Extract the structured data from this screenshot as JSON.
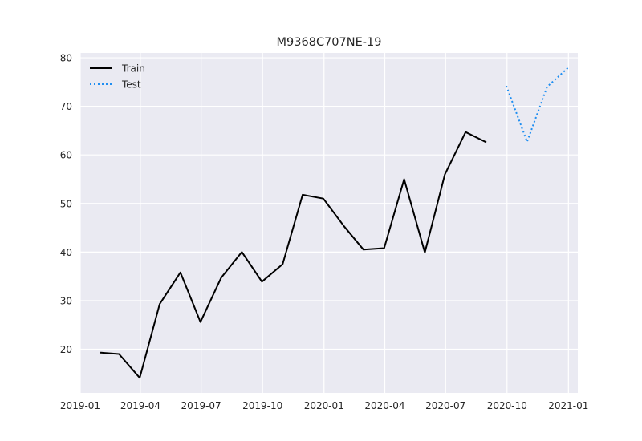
{
  "chart_data": {
    "type": "line",
    "title": "M9368C707NE-19",
    "xlabel": "",
    "ylabel": "",
    "grid": true,
    "legend_position": "top-left",
    "xlim": [
      "2019-01-01",
      "2021-01-15"
    ],
    "ylim": [
      11,
      81
    ],
    "x_ticks": [
      "2019-01",
      "2019-04",
      "2019-07",
      "2019-10",
      "2020-01",
      "2020-04",
      "2020-07",
      "2020-10",
      "2021-01"
    ],
    "y_ticks": [
      20,
      30,
      40,
      50,
      60,
      70,
      80
    ],
    "series": [
      {
        "name": "Train",
        "color": "#000000",
        "style": "solid",
        "x": [
          "2019-01-31",
          "2019-02-28",
          "2019-03-31",
          "2019-04-30",
          "2019-05-31",
          "2019-06-30",
          "2019-07-31",
          "2019-08-31",
          "2019-09-30",
          "2019-10-31",
          "2019-11-30",
          "2019-12-31",
          "2020-01-31",
          "2020-02-29",
          "2020-03-31",
          "2020-04-30",
          "2020-05-31",
          "2020-06-30",
          "2020-07-31",
          "2020-08-31"
        ],
        "values": [
          19.3,
          19.0,
          14.1,
          29.3,
          35.8,
          25.6,
          34.7,
          40.0,
          33.9,
          37.5,
          51.8,
          51.0,
          45.3,
          40.5,
          40.8,
          55.0,
          39.9,
          56.0,
          64.7,
          62.6
        ]
      },
      {
        "name": "Test",
        "color": "#1f8ef1",
        "style": "dotted",
        "x": [
          "2020-09-30",
          "2020-10-31",
          "2020-11-30",
          "2020-12-31"
        ],
        "values": [
          74.2,
          62.7,
          74.0,
          77.9
        ]
      }
    ]
  }
}
